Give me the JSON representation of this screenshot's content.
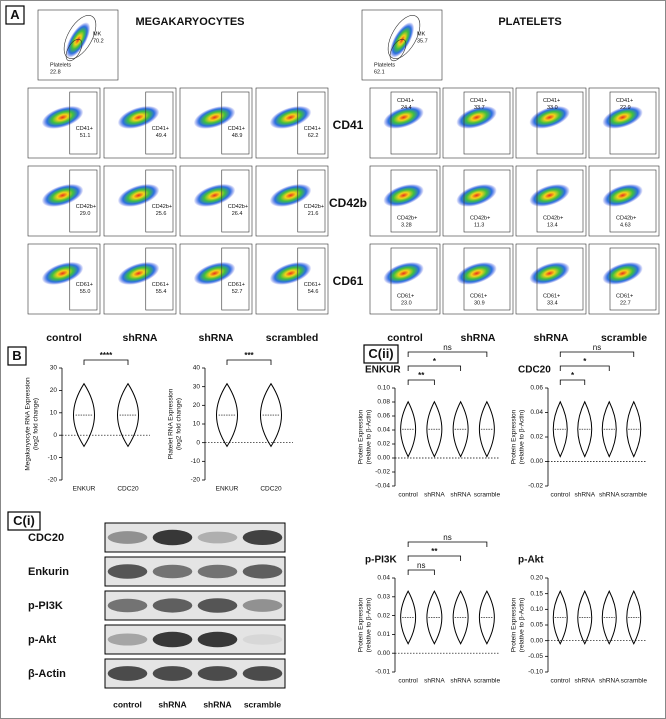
{
  "panel_a": {
    "label": "A",
    "title_left": "MEGAKARYOCYTES",
    "title_right": "PLATELETS",
    "gating_left": {
      "mk": "MK",
      "mk_value": "70.2",
      "platelets": "Platelets",
      "platelets_value": "22.8"
    },
    "gating_right": {
      "mk": "MK",
      "mk_value": "35.7",
      "platelets": "Platelets",
      "platelets_value": "62.1"
    },
    "markers": [
      "CD41",
      "CD42b",
      "CD61"
    ],
    "columns_left": [
      "control",
      "shRNA",
      "shRNA",
      "scrambled"
    ],
    "columns_right": [
      "control",
      "shRNA",
      "shRNA",
      "scramble"
    ],
    "gates_left": [
      {
        "label": "CD41+",
        "values": [
          "51.1",
          "49.4",
          "48.9",
          "62.2"
        ]
      },
      {
        "label": "CD42b+",
        "values": [
          "29.0",
          "25.6",
          "26.4",
          "21.6"
        ]
      },
      {
        "label": "CD61+",
        "values": [
          "55.0",
          "55.4",
          "52.7",
          "54.6"
        ]
      }
    ],
    "gates_right": [
      {
        "label": "CD41+",
        "values": [
          "24.4",
          "33.7",
          "33.0",
          "22.9"
        ]
      },
      {
        "label": "CD42b+",
        "values": [
          "3.28",
          "11.3",
          "13.4",
          "4.63"
        ]
      },
      {
        "label": "CD61+",
        "values": [
          "23.0",
          "30.9",
          "33.4",
          "22.7"
        ]
      }
    ]
  },
  "panel_b": {
    "label": "B",
    "charts": [
      {
        "ylabel": [
          "Megakaryocyte RNA Expression",
          "(log2 fold change)"
        ],
        "categories": [
          "ENKUR",
          "CDC20"
        ],
        "ylim": [
          -20,
          30
        ],
        "yticks": [
          -20,
          -10,
          0,
          10,
          20,
          30
        ],
        "significance": [
          "****"
        ]
      },
      {
        "ylabel": [
          "Platelet RNA Expression",
          "(log2 fold change)"
        ],
        "categories": [
          "ENKUR",
          "CDC20"
        ],
        "ylim": [
          -20,
          40
        ],
        "yticks": [
          -20,
          -10,
          0,
          10,
          20,
          30,
          40
        ],
        "significance": [
          "***"
        ]
      }
    ]
  },
  "panel_cii": {
    "label": "C(ii)",
    "charts": [
      {
        "title": "ENKUR",
        "ylabel": [
          "Protein Expression",
          "(relative to β-Actin)"
        ],
        "categories": [
          "control",
          "shRNA",
          "shRNA",
          "scramble"
        ],
        "ylim": [
          -0.04,
          0.1
        ],
        "yticks": [
          -0.04,
          -0.02,
          {
            "value": 0,
            "label": "0.00"
          },
          0.02,
          0.04,
          0.06,
          0.08,
          {
            "value": 0.1,
            "label": "0.10"
          }
        ],
        "significance": [
          "ns",
          "*",
          "**"
        ]
      },
      {
        "title": "CDC20",
        "ylabel": [
          "Protein Expression",
          "(relative to β-Actin)"
        ],
        "categories": [
          "control",
          "shRNA",
          "shRNA",
          "scramble"
        ],
        "ylim": [
          -0.02,
          0.06
        ],
        "yticks": [
          -0.02,
          {
            "value": 0,
            "label": "0.00"
          },
          0.02,
          0.04,
          0.06
        ],
        "significance": [
          "ns",
          "*",
          "*"
        ]
      },
      {
        "title": "p-PI3K",
        "ylabel": [
          "Protein Expression",
          "(relative to β-Actin)"
        ],
        "categories": [
          "control",
          "shRNA",
          "shRNA",
          "scramble"
        ],
        "ylim": [
          -0.01,
          0.04
        ],
        "yticks": [
          -0.01,
          {
            "value": 0,
            "label": "0.00"
          },
          0.01,
          0.02,
          0.03,
          0.04
        ],
        "significance": [
          "ns",
          "**",
          "ns"
        ]
      },
      {
        "title": "p-Akt",
        "ylabel": [
          "Protein Expression",
          "(relative to β-Actin)"
        ],
        "categories": [
          "control",
          "shRNA",
          "shRNA",
          "scramble"
        ],
        "ylim": [
          -0.1,
          0.2
        ],
        "yticks": [
          {
            "value": -0.1,
            "label": "-0.10"
          },
          -0.05,
          {
            "value": 0,
            "label": "0.00"
          },
          0.05,
          {
            "value": 0.1,
            "label": "0.10"
          },
          0.15,
          {
            "value": 0.2,
            "label": "0.20"
          }
        ],
        "significance": []
      }
    ]
  },
  "panel_ci": {
    "label": "C(i)",
    "rows": [
      "CDC20",
      "Enkurin",
      "p-PI3K",
      "p-Akt",
      "β-Actin"
    ],
    "columns": [
      "control",
      "shRNA",
      "shRNA",
      "scramble"
    ]
  }
}
